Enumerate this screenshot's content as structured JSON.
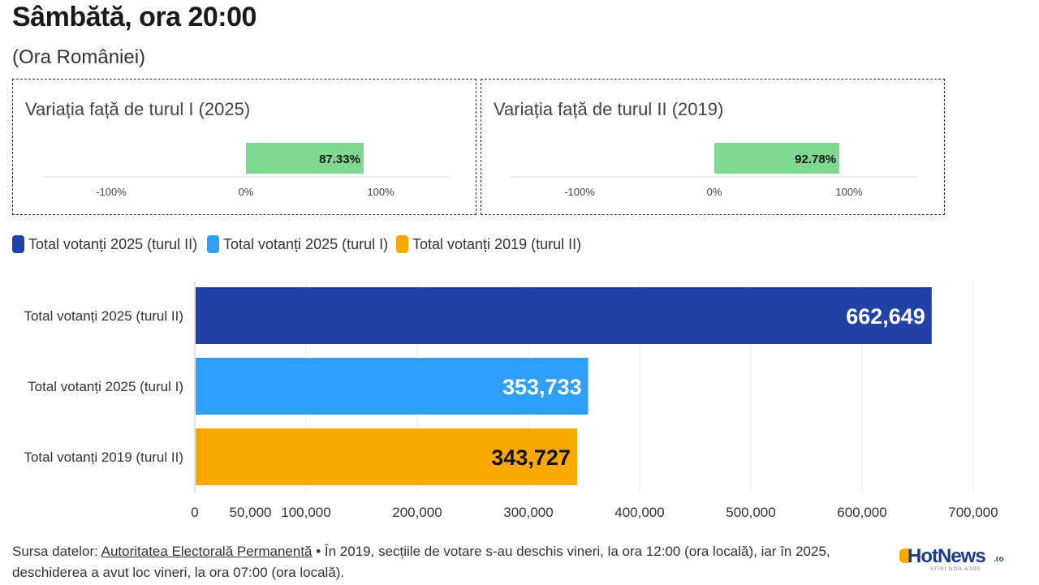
{
  "title": "Sâmbătă, ora 20:00",
  "subtitle": "(Ora României)",
  "variation_boxes": [
    {
      "title": "Variația față de turul I (2025)",
      "value": 87.33,
      "value_label": "87.33%",
      "ticks": [
        "-100%",
        "0%",
        "100%"
      ],
      "bar_color": "#7fd88f"
    },
    {
      "title": "Variația față de turul II (2019)",
      "value": 92.78,
      "value_label": "92.78%",
      "ticks": [
        "-100%",
        "0%",
        "100%"
      ],
      "bar_color": "#7fd88f"
    }
  ],
  "legend": [
    {
      "label": "Total votanți 2025 (turul II)",
      "color": "#2041a8"
    },
    {
      "label": "Total votanți 2025 (turul I)",
      "color": "#2e9ffa"
    },
    {
      "label": "Total votanți 2019 (turul II)",
      "color": "#fba902"
    }
  ],
  "chart_data": {
    "type": "bar",
    "orientation": "horizontal",
    "categories": [
      "Total votanți 2025 (turul II)",
      "Total votanți 2025 (turul I)",
      "Total votanți 2019 (turul II)"
    ],
    "values": [
      662649,
      353733,
      343727
    ],
    "value_labels": [
      "662,649",
      "353,733",
      "343,727"
    ],
    "colors": [
      "#2041a8",
      "#2e9ffa",
      "#fba902"
    ],
    "label_colors": [
      "#ffffff",
      "#ffffff",
      "#111111"
    ],
    "xlim": [
      0,
      700000
    ],
    "xticks": [
      0,
      50000,
      100000,
      200000,
      300000,
      400000,
      500000,
      600000,
      700000
    ],
    "xtick_labels": [
      "0",
      "50,000",
      "100,000",
      "200,000",
      "300,000",
      "400,000",
      "500,000",
      "600,000",
      "700,000"
    ],
    "grid": true
  },
  "footer": {
    "source_prefix": "Sursa datelor: ",
    "source_link": "Autoritatea Electorală Permanentă",
    "note": " • În 2019, secțiile de votare s-au deschis vineri, la ora 12:00 (ora locală), iar în 2025, deschiderea a avut loc vineri, la ora 07:00 (ora locală)."
  },
  "logo": {
    "name": "HotNews",
    "suffix": ".ro",
    "tagline": "STIRI NON-STOP"
  }
}
